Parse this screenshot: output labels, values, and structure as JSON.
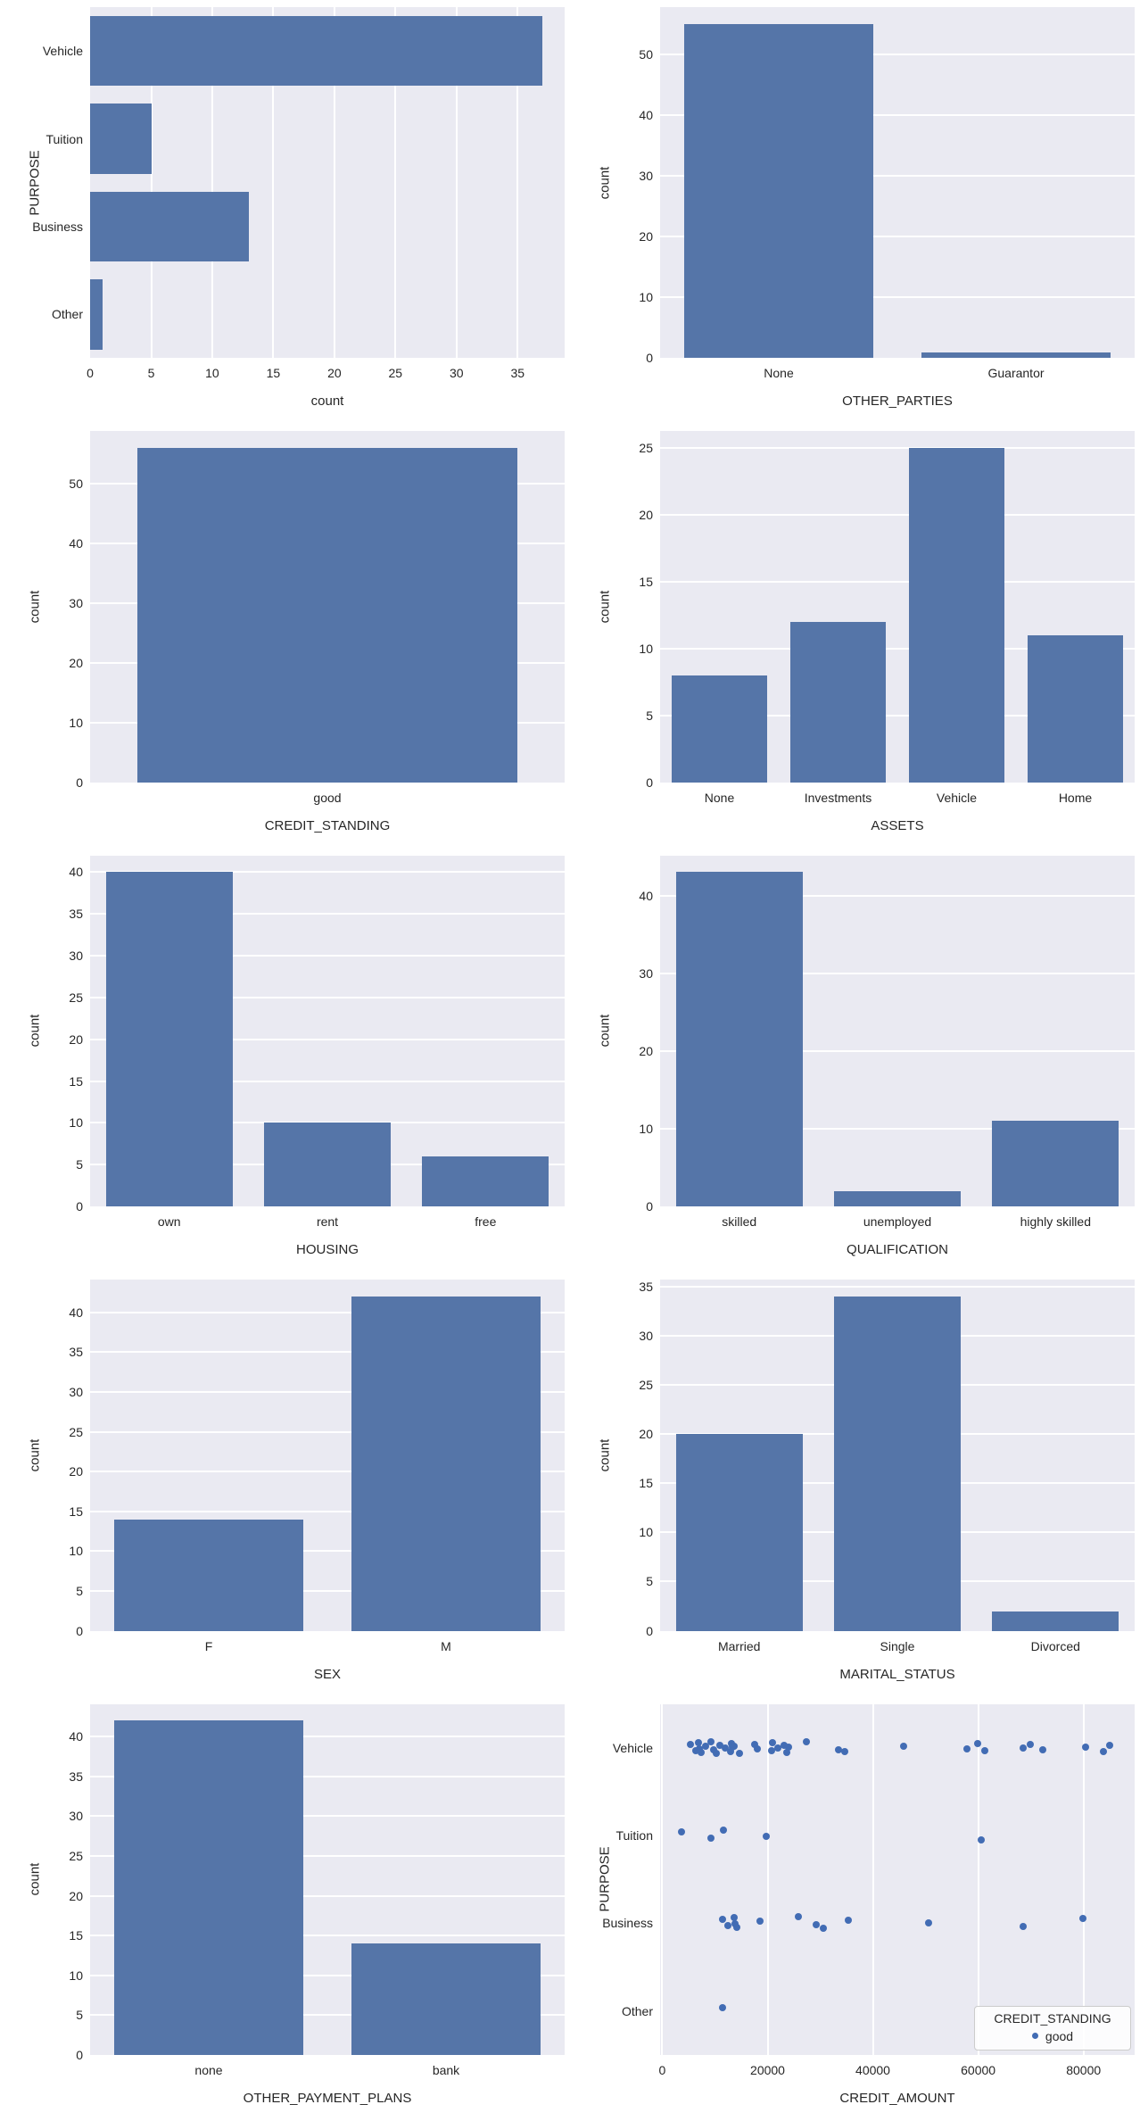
{
  "figure": {
    "background": "#ffffff",
    "axes_background": "#eaeaf2",
    "grid_color": "#ffffff",
    "bar_color": "#5575a8",
    "point_color": "#426cb4",
    "text_color": "#262626"
  },
  "chart_data": [
    {
      "id": "purpose",
      "type": "bar",
      "orientation": "horizontal",
      "categories": [
        "Vehicle",
        "Tuition",
        "Business",
        "Other"
      ],
      "values": [
        37,
        5,
        13,
        1
      ],
      "xlabel": "count",
      "ylabel": "PURPOSE",
      "xticks": [
        0,
        5,
        10,
        15,
        20,
        25,
        30,
        35
      ],
      "xlim": [
        0,
        38.85
      ],
      "grid": "on"
    },
    {
      "id": "other_parties",
      "type": "bar",
      "orientation": "vertical",
      "categories": [
        "None",
        "Guarantor"
      ],
      "values": [
        55,
        1
      ],
      "xlabel": "OTHER_PARTIES",
      "ylabel": "count",
      "yticks": [
        0,
        10,
        20,
        30,
        40,
        50
      ],
      "ylim": [
        0,
        57.75
      ],
      "grid": "on"
    },
    {
      "id": "credit_standing",
      "type": "bar",
      "orientation": "vertical",
      "categories": [
        "good"
      ],
      "values": [
        56
      ],
      "xlabel": "CREDIT_STANDING",
      "ylabel": "count",
      "yticks": [
        0,
        10,
        20,
        30,
        40,
        50
      ],
      "ylim": [
        0,
        58.8
      ],
      "grid": "on"
    },
    {
      "id": "assets",
      "type": "bar",
      "orientation": "vertical",
      "categories": [
        "None",
        "Investments",
        "Vehicle",
        "Home"
      ],
      "values": [
        8,
        12,
        25,
        11
      ],
      "xlabel": "ASSETS",
      "ylabel": "count",
      "yticks": [
        0,
        5,
        10,
        15,
        20,
        25
      ],
      "ylim": [
        0,
        26.25
      ],
      "grid": "on"
    },
    {
      "id": "housing",
      "type": "bar",
      "orientation": "vertical",
      "categories": [
        "own",
        "rent",
        "free"
      ],
      "values": [
        40,
        10,
        6
      ],
      "xlabel": "HOUSING",
      "ylabel": "count",
      "yticks": [
        0,
        5,
        10,
        15,
        20,
        25,
        30,
        35,
        40
      ],
      "ylim": [
        0,
        42
      ],
      "grid": "on"
    },
    {
      "id": "qualification",
      "type": "bar",
      "orientation": "vertical",
      "categories": [
        "skilled",
        "unemployed",
        "highly skilled"
      ],
      "values": [
        43,
        2,
        11
      ],
      "xlabel": "QUALIFICATION",
      "ylabel": "count",
      "yticks": [
        0,
        10,
        20,
        30,
        40
      ],
      "ylim": [
        0,
        45.15
      ],
      "grid": "on"
    },
    {
      "id": "sex",
      "type": "bar",
      "orientation": "vertical",
      "categories": [
        "F",
        "M"
      ],
      "values": [
        14,
        42
      ],
      "xlabel": "SEX",
      "ylabel": "count",
      "yticks": [
        0,
        5,
        10,
        15,
        20,
        25,
        30,
        35,
        40
      ],
      "ylim": [
        0,
        44.1
      ],
      "grid": "on"
    },
    {
      "id": "marital_status",
      "type": "bar",
      "orientation": "vertical",
      "categories": [
        "Married",
        "Single",
        "Divorced"
      ],
      "values": [
        20,
        34,
        2
      ],
      "xlabel": "MARITAL_STATUS",
      "ylabel": "count",
      "yticks": [
        0,
        5,
        10,
        15,
        20,
        25,
        30,
        35
      ],
      "ylim": [
        0,
        35.7
      ],
      "grid": "on"
    },
    {
      "id": "other_payment_plans",
      "type": "bar",
      "orientation": "vertical",
      "categories": [
        "none",
        "bank"
      ],
      "values": [
        42,
        14
      ],
      "xlabel": "OTHER_PAYMENT_PLANS",
      "ylabel": "count",
      "yticks": [
        0,
        5,
        10,
        15,
        20,
        25,
        30,
        35,
        40
      ],
      "ylim": [
        0,
        44.1
      ],
      "grid": "on"
    },
    {
      "id": "credit_amount_by_purpose",
      "type": "scatter",
      "xlabel": "CREDIT_AMOUNT",
      "ylabel": "PURPOSE",
      "categories": [
        "Vehicle",
        "Tuition",
        "Business",
        "Other"
      ],
      "xticks": [
        0,
        20000,
        40000,
        60000,
        80000
      ],
      "xlim": [
        -400,
        89700
      ],
      "grid": "on",
      "legend": {
        "title": "CREDIT_STANDING",
        "items": [
          {
            "label": "good"
          }
        ],
        "position": "lower right"
      },
      "series": [
        {
          "name": "good",
          "points_by_category": {
            "Vehicle": [
              5400,
              6400,
              6900,
              7000,
              7400,
              8300,
              9300,
              9700,
              10200,
              11000,
              12000,
              12900,
              13100,
              13300,
              13600,
              14600,
              17500,
              18100,
              20700,
              21000,
              22000,
              23100,
              23600,
              23900,
              27300,
              33400,
              34600,
              45900,
              57800,
              59800,
              61200,
              68600,
              69800,
              72200,
              80300,
              83700,
              84900
            ],
            "Tuition": [
              3700,
              9300,
              11700,
              19800,
              60500
            ],
            "Business": [
              11500,
              12400,
              13600,
              13900,
              14200,
              18600,
              25800,
              29300,
              30500,
              35300,
              50500,
              68600,
              79800
            ],
            "Other": [
              11400
            ]
          }
        }
      ]
    }
  ]
}
